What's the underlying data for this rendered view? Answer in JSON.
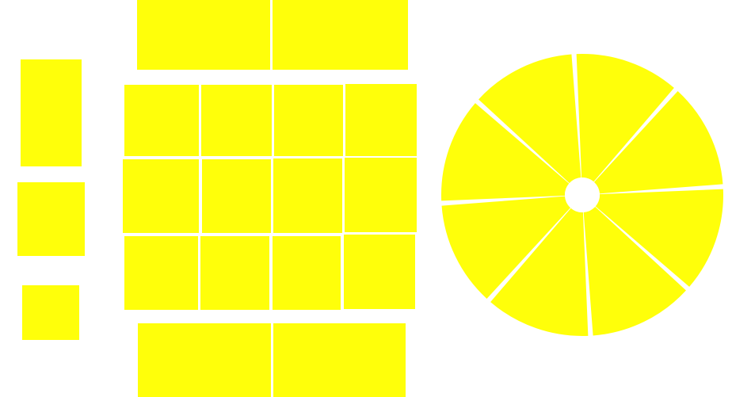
{
  "palette": {
    "background": "#ffffff",
    "fill": "#ffff0a"
  },
  "groups": [
    {
      "name": "left-column",
      "tiles": 3
    },
    {
      "name": "grid",
      "rows": 5,
      "tiles": 16
    },
    {
      "name": "wheel",
      "slices": 8,
      "center": "hole"
    }
  ]
}
